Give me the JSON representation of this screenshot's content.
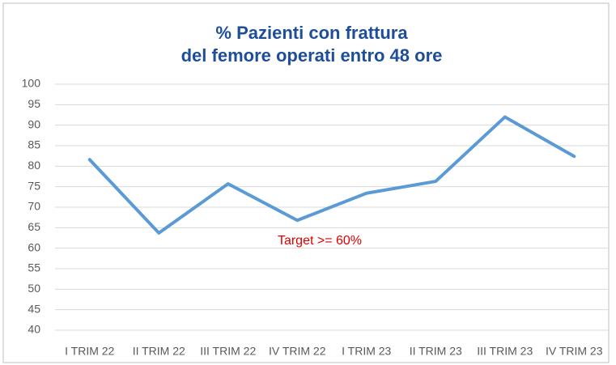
{
  "chart_data": {
    "type": "line",
    "title": [
      "% Pazienti con frattura",
      "del femore operati entro 48 ore"
    ],
    "categories": [
      "I TRIM 22",
      "II TRIM 22",
      "III TRIM 22",
      "IV TRIM 22",
      "I TRIM 23",
      "II TRIM 23",
      "III TRIM 23",
      "IV TRIM 23"
    ],
    "series": [
      {
        "color": "#5b9bd5",
        "values": [
          81.6,
          63.7,
          75.7,
          66.8,
          73.4,
          76.3,
          92,
          82.4
        ]
      }
    ],
    "ylim": [
      40,
      100
    ],
    "yticks": [
      40,
      45,
      50,
      55,
      60,
      65,
      70,
      75,
      80,
      85,
      90,
      95,
      100
    ],
    "grid": true,
    "annotation": "Target >= 60%"
  }
}
